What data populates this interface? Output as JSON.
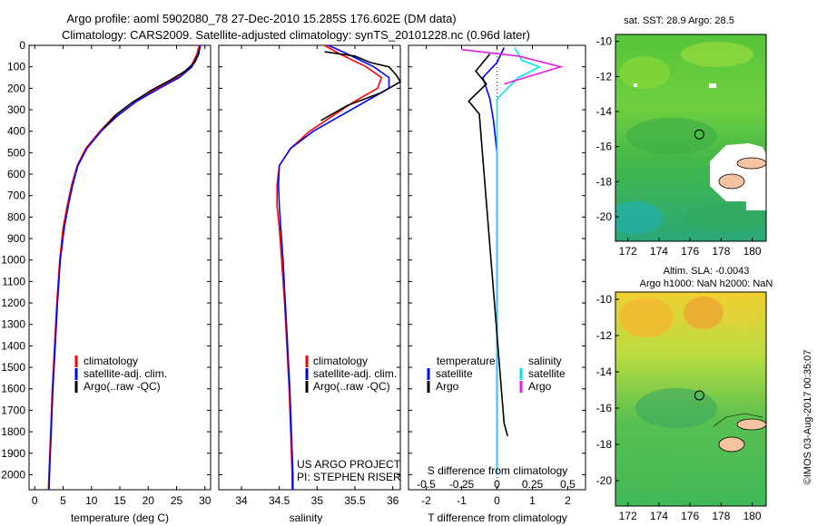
{
  "header": {
    "title_line1": "Argo profile: aoml 5902080_78 27-Dec-2010 15.285S 176.602E (DM data)",
    "title_line2": "Climatology: CARS2009. Satellite-adjusted climatology: synTS_20101228.nc (0.96d later)"
  },
  "colors": {
    "climatology": "#ff0000",
    "satellite": "#0000ff",
    "argo": "#000000",
    "salinity_satellite": "#00e5ee",
    "salinity_argo": "#e020e0",
    "land": "#f4c4a0"
  },
  "project": {
    "line1": "US ARGO PROJECT",
    "line2": "PI: STEPHEN RISER"
  },
  "timestamp": "©IMOS 03-Aug-2017 00:35:07",
  "chart_data": [
    {
      "type": "line",
      "name": "temperature-profile",
      "xlabel": "temperature (deg C)",
      "ylabel": "",
      "xlim": [
        -1,
        31
      ],
      "ylim": [
        2070,
        0
      ],
      "xticks": [
        0,
        5,
        10,
        15,
        20,
        25,
        30
      ],
      "yticks": [
        0,
        100,
        200,
        300,
        400,
        500,
        600,
        700,
        800,
        900,
        1000,
        1100,
        1200,
        1300,
        1400,
        1500,
        1600,
        1700,
        1800,
        1900,
        2000
      ],
      "legend": [
        "climatology",
        "satellite-adj. clim.",
        "Argo(..raw -QC)"
      ],
      "series": [
        {
          "name": "climatology",
          "color": "#ff0000",
          "points": [
            [
              29,
              0
            ],
            [
              28.6,
              40
            ],
            [
              27.5,
              100
            ],
            [
              25,
              150
            ],
            [
              21.5,
              200
            ],
            [
              17.5,
              260
            ],
            [
              14,
              330
            ],
            [
              11.5,
              400
            ],
            [
              9,
              480
            ],
            [
              7.5,
              560
            ],
            [
              6.5,
              650
            ],
            [
              5.7,
              750
            ],
            [
              5,
              850
            ],
            [
              4.4,
              1000
            ],
            [
              3.9,
              1200
            ],
            [
              3.5,
              1400
            ],
            [
              3.1,
              1600
            ],
            [
              2.8,
              1800
            ],
            [
              2.5,
              2000
            ],
            [
              2.4,
              2070
            ]
          ]
        },
        {
          "name": "satellite-adj. clim.",
          "color": "#0000ff",
          "points": [
            [
              29.2,
              0
            ],
            [
              28.8,
              40
            ],
            [
              27.7,
              100
            ],
            [
              25.5,
              150
            ],
            [
              22,
              200
            ],
            [
              18,
              260
            ],
            [
              14.5,
              330
            ],
            [
              11.7,
              400
            ],
            [
              9.2,
              480
            ],
            [
              7.6,
              560
            ],
            [
              6.7,
              650
            ],
            [
              5.9,
              750
            ],
            [
              5.2,
              850
            ],
            [
              4.5,
              1000
            ],
            [
              4,
              1200
            ],
            [
              3.6,
              1400
            ],
            [
              3.2,
              1600
            ],
            [
              2.9,
              1800
            ],
            [
              2.6,
              2000
            ],
            [
              2.5,
              2070
            ]
          ]
        },
        {
          "name": "Argo(..raw -QC)",
          "color": "#000000",
          "points": [
            [
              29.1,
              10
            ],
            [
              28.9,
              40
            ],
            [
              28.2,
              80
            ],
            [
              26.5,
              120
            ],
            [
              24,
              160
            ],
            [
              20.5,
              210
            ],
            [
              17,
              270
            ],
            [
              14.5,
              320
            ],
            [
              12,
              390
            ]
          ]
        }
      ]
    },
    {
      "type": "line",
      "name": "salinity-profile",
      "xlabel": "salinity",
      "ylabel": "",
      "xlim": [
        33.7,
        36.1
      ],
      "ylim": [
        2070,
        0
      ],
      "xticks": [
        34,
        34.5,
        35,
        35.5,
        36
      ],
      "legend": [
        "climatology",
        "satellite-adj. clim.",
        "Argo(..raw -QC)"
      ],
      "series": [
        {
          "name": "climatology",
          "color": "#ff0000",
          "points": [
            [
              35.1,
              0
            ],
            [
              35.3,
              40
            ],
            [
              35.65,
              100
            ],
            [
              35.85,
              150
            ],
            [
              35.8,
              200
            ],
            [
              35.5,
              260
            ],
            [
              35.2,
              330
            ],
            [
              34.9,
              400
            ],
            [
              34.65,
              480
            ],
            [
              34.5,
              560
            ],
            [
              34.47,
              650
            ],
            [
              34.47,
              750
            ],
            [
              34.5,
              850
            ],
            [
              34.53,
              1000
            ],
            [
              34.57,
              1200
            ],
            [
              34.6,
              1400
            ],
            [
              34.63,
              1600
            ],
            [
              34.65,
              1800
            ],
            [
              34.67,
              2000
            ],
            [
              34.67,
              2070
            ]
          ]
        },
        {
          "name": "satellite-adj. clim.",
          "color": "#0000ff",
          "points": [
            [
              35.15,
              0
            ],
            [
              35.4,
              40
            ],
            [
              35.75,
              100
            ],
            [
              35.95,
              150
            ],
            [
              35.95,
              200
            ],
            [
              35.65,
              260
            ],
            [
              35.3,
              330
            ],
            [
              34.95,
              400
            ],
            [
              34.65,
              480
            ],
            [
              34.5,
              560
            ],
            [
              34.49,
              650
            ],
            [
              34.5,
              750
            ],
            [
              34.52,
              850
            ],
            [
              34.55,
              1000
            ],
            [
              34.58,
              1200
            ],
            [
              34.61,
              1400
            ],
            [
              34.64,
              1600
            ],
            [
              34.66,
              1800
            ],
            [
              34.68,
              2000
            ],
            [
              34.68,
              2070
            ]
          ]
        },
        {
          "name": "Argo(..raw -QC)",
          "color": "#000000",
          "points": [
            [
              35.1,
              30
            ],
            [
              35.5,
              50
            ],
            [
              35.7,
              80
            ],
            [
              35.95,
              100
            ],
            [
              36.05,
              140
            ],
            [
              36.1,
              170
            ],
            [
              35.85,
              220
            ],
            [
              35.4,
              280
            ],
            [
              35.05,
              350
            ]
          ]
        }
      ]
    },
    {
      "type": "line",
      "name": "difference-profile",
      "xlabel": "T difference from climatology",
      "x2label": "S difference from climatology",
      "ylabel": "",
      "xlim": [
        -2.5,
        2.5
      ],
      "ylim": [
        2070,
        0
      ],
      "xticks": [
        -2,
        -1,
        0,
        1,
        2
      ],
      "x2ticks": [
        -0.5,
        -0.25,
        0,
        0.25,
        0.5
      ],
      "legend_temperature_heading": "temperature",
      "legend_salinity_heading": "salinity",
      "legend_satellite": "satellite",
      "legend_argo": "Argo",
      "series": [
        {
          "name": "satellite",
          "group": "temperature",
          "color": "#0000ff",
          "points": [
            [
              0.2,
              10
            ],
            [
              0,
              80
            ],
            [
              -0.4,
              150
            ],
            [
              -0.2,
              250
            ],
            [
              -0.1,
              350
            ],
            [
              0,
              500
            ],
            [
              0,
              800
            ],
            [
              0,
              1200
            ],
            [
              0,
              1600
            ],
            [
              0,
              2000
            ]
          ]
        },
        {
          "name": "satellite",
          "group": "salinity",
          "color": "#00e5ee",
          "points": [
            [
              0.5,
              10
            ],
            [
              0.7,
              70
            ],
            [
              1.2,
              100
            ],
            [
              0.6,
              150
            ],
            [
              0,
              250
            ],
            [
              0,
              350
            ],
            [
              0,
              500
            ],
            [
              0,
              800
            ],
            [
              0,
              1200
            ],
            [
              0,
              1600
            ],
            [
              0,
              2000
            ]
          ]
        },
        {
          "name": "Argo",
          "group": "temperature",
          "color": "#000000",
          "points": [
            [
              -0.2,
              40
            ],
            [
              -0.6,
              120
            ],
            [
              -0.3,
              180
            ],
            [
              -0.8,
              260
            ],
            [
              -0.5,
              320
            ],
            [
              0.2,
              1760
            ],
            [
              0.3,
              1820
            ]
          ]
        },
        {
          "name": "Argo",
          "group": "salinity",
          "color": "#e020e0",
          "points": [
            [
              -1,
              20
            ],
            [
              0.6,
              50
            ],
            [
              1.8,
              100
            ],
            [
              0.8,
              150
            ],
            [
              0.2,
              180
            ]
          ]
        }
      ]
    },
    {
      "type": "heatmap",
      "name": "sst-map",
      "title": "sat. SST: 28.9 Argo: 28.5",
      "xlim": [
        171.2,
        180.9
      ],
      "ylim": [
        -21.4,
        -9.6
      ],
      "xticks": [
        172,
        174,
        176,
        178,
        180
      ],
      "yticks": [
        -10,
        -12,
        -14,
        -16,
        -18,
        -20
      ],
      "marker": [
        176.6,
        -15.3
      ]
    },
    {
      "type": "heatmap",
      "name": "sla-map",
      "title_line1": "Altim. SLA: -0.0043",
      "title_line2": "Argo h1000: NaN h2000: NaN",
      "xlim": [
        171.2,
        180.9
      ],
      "ylim": [
        -21.4,
        -9.6
      ],
      "xticks": [
        172,
        174,
        176,
        178,
        180
      ],
      "yticks": [
        -10,
        -12,
        -14,
        -16,
        -18,
        -20
      ],
      "marker": [
        176.6,
        -15.3
      ]
    }
  ]
}
